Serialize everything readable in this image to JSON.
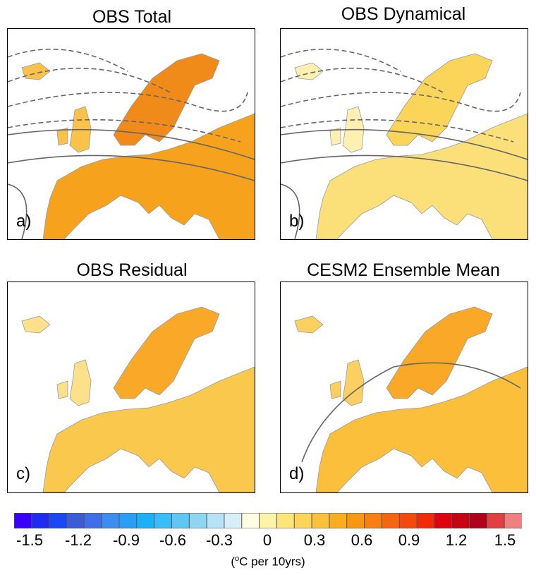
{
  "panels": [
    {
      "id": "a",
      "title": "OBS Total",
      "letter": "a)",
      "fill": "#f7a21c",
      "north_fill": "#f08a18",
      "land_fill": "#fbc24a"
    },
    {
      "id": "b",
      "title": "OBS Dynamical",
      "letter": "b)",
      "fill": "#fbe07a",
      "north_fill": "#fbd45a",
      "land_fill": "#fdf0b0"
    },
    {
      "id": "c",
      "title": "OBS Residual",
      "letter": "c)",
      "fill": "#fbc84e",
      "north_fill": "#f9a827",
      "land_fill": "#fde08a"
    },
    {
      "id": "d",
      "title": "CESM2 Ensemble Mean",
      "letter": "d)",
      "fill": "#fbbf3c",
      "north_fill": "#f9a827",
      "land_fill": "#fcd060"
    }
  ],
  "colorbar": {
    "colors": [
      "#3a00ff",
      "#1f2bf2",
      "#1a47f5",
      "#3a5cd8",
      "#3f6ee8",
      "#3b8ef0",
      "#2a9ef6",
      "#1cb0f8",
      "#38bdf8",
      "#5fc7f4",
      "#8cd6f2",
      "#b5e2f5",
      "#d8eef7",
      "#fffce0",
      "#fff3a8",
      "#ffe478",
      "#fdd45a",
      "#fcc03a",
      "#fbad20",
      "#f99712",
      "#f87f10",
      "#f66610",
      "#f44a0c",
      "#f12a0a",
      "#e0000e",
      "#c80011",
      "#b0001a",
      "#e04040",
      "#f08080"
    ],
    "tick_labels": [
      "-1.5",
      "-1.2",
      "-0.9",
      "-0.6",
      "-0.3",
      "0",
      "0.3",
      "0.6",
      "0.9",
      "1.2",
      "1.5"
    ],
    "units_prefix": "(",
    "units_sup": "o",
    "units_rest": "C per 10yrs)"
  }
}
